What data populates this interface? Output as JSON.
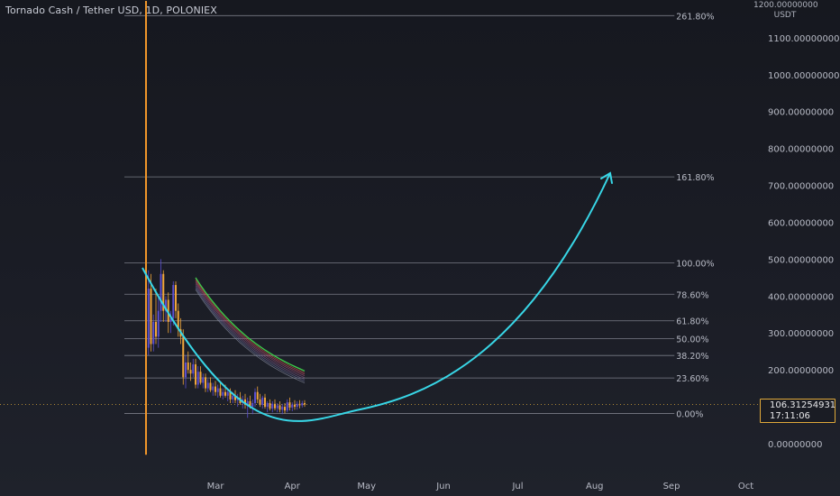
{
  "header": {
    "title": "Tornado Cash / Tether USD, 1D, POLONIEX",
    "axis_top_label": "1200.00000000",
    "axis_unit": "USDT"
  },
  "price_badge": {
    "price": "106.31254931",
    "countdown": "17:11:06",
    "color": "#e0a93a"
  },
  "colors": {
    "curve": "#38d6e6",
    "spike": "#f0962a",
    "fib_line": "#8a8d98",
    "up_candle": "#5b4fd0",
    "down_candle": "#f0a63a",
    "ribbon_top": "#3ecf4c",
    "ribbon_bottom": "#e0506a"
  },
  "chart_data": {
    "type": "candlestick",
    "y_axis": {
      "min": 0,
      "max": 1200,
      "ticks": [
        {
          "v": 0,
          "label": "0.00000000"
        },
        {
          "v": 200,
          "label": "200.00000000"
        },
        {
          "v": 300,
          "label": "300.00000000"
        },
        {
          "v": 400,
          "label": "400.00000000"
        },
        {
          "v": 500,
          "label": "500.00000000"
        },
        {
          "v": 600,
          "label": "600.00000000"
        },
        {
          "v": 700,
          "label": "700.00000000"
        },
        {
          "v": 800,
          "label": "800.00000000"
        },
        {
          "v": 900,
          "label": "900.00000000"
        },
        {
          "v": 1000,
          "label": "1000.00000000"
        },
        {
          "v": 1100,
          "label": "1100.00000000"
        }
      ]
    },
    "x_axis": {
      "ticks": [
        {
          "d": 28,
          "label": "Mar"
        },
        {
          "d": 59,
          "label": "Apr"
        },
        {
          "d": 89,
          "label": "May"
        },
        {
          "d": 120,
          "label": "Jun"
        },
        {
          "d": 150,
          "label": "Jul"
        },
        {
          "d": 181,
          "label": "Aug"
        },
        {
          "d": 212,
          "label": "Sep"
        },
        {
          "d": 242,
          "label": "Oct"
        }
      ]
    },
    "fibonacci": [
      {
        "level": "261.80%",
        "price": 1160
      },
      {
        "level": "161.80%",
        "price": 723
      },
      {
        "level": "100.00%",
        "price": 490
      },
      {
        "level": "78.60%",
        "price": 405
      },
      {
        "level": "61.80%",
        "price": 333
      },
      {
        "level": "50.00%",
        "price": 285
      },
      {
        "level": "38.20%",
        "price": 239
      },
      {
        "level": "23.60%",
        "price": 178
      },
      {
        "level": "0.00%",
        "price": 82
      }
    ],
    "fib_start_day": 0,
    "fib_end_day": 211,
    "spike": {
      "day": 0,
      "high": 1200,
      "low": -30
    },
    "current_price": 106.31254931,
    "candles": [
      {
        "d": 0,
        "o": 330,
        "h": 1200,
        "l": -30,
        "c": 260
      },
      {
        "d": 1,
        "o": 260,
        "h": 470,
        "l": 240,
        "c": 420
      },
      {
        "d": 2,
        "o": 420,
        "h": 460,
        "l": 250,
        "c": 270
      },
      {
        "d": 3,
        "o": 270,
        "h": 350,
        "l": 250,
        "c": 330
      },
      {
        "d": 4,
        "o": 330,
        "h": 420,
        "l": 270,
        "c": 290
      },
      {
        "d": 5,
        "o": 290,
        "h": 400,
        "l": 260,
        "c": 360
      },
      {
        "d": 6,
        "o": 360,
        "h": 500,
        "l": 330,
        "c": 460
      },
      {
        "d": 7,
        "o": 460,
        "h": 470,
        "l": 330,
        "c": 360
      },
      {
        "d": 8,
        "o": 360,
        "h": 400,
        "l": 330,
        "c": 390
      },
      {
        "d": 9,
        "o": 390,
        "h": 410,
        "l": 300,
        "c": 330
      },
      {
        "d": 10,
        "o": 330,
        "h": 360,
        "l": 300,
        "c": 340
      },
      {
        "d": 11,
        "o": 340,
        "h": 440,
        "l": 320,
        "c": 430
      },
      {
        "d": 12,
        "o": 430,
        "h": 440,
        "l": 340,
        "c": 360
      },
      {
        "d": 13,
        "o": 360,
        "h": 380,
        "l": 290,
        "c": 310
      },
      {
        "d": 14,
        "o": 310,
        "h": 340,
        "l": 270,
        "c": 290
      },
      {
        "d": 15,
        "o": 290,
        "h": 310,
        "l": 160,
        "c": 180
      },
      {
        "d": 16,
        "o": 180,
        "h": 240,
        "l": 150,
        "c": 220
      },
      {
        "d": 17,
        "o": 220,
        "h": 250,
        "l": 190,
        "c": 200
      },
      {
        "d": 18,
        "o": 200,
        "h": 220,
        "l": 170,
        "c": 190
      },
      {
        "d": 19,
        "o": 190,
        "h": 230,
        "l": 180,
        "c": 215
      },
      {
        "d": 20,
        "o": 215,
        "h": 230,
        "l": 150,
        "c": 160
      },
      {
        "d": 21,
        "o": 160,
        "h": 210,
        "l": 150,
        "c": 195
      },
      {
        "d": 22,
        "o": 195,
        "h": 210,
        "l": 160,
        "c": 165
      },
      {
        "d": 23,
        "o": 165,
        "h": 190,
        "l": 150,
        "c": 180
      },
      {
        "d": 24,
        "o": 180,
        "h": 190,
        "l": 140,
        "c": 150
      },
      {
        "d": 25,
        "o": 150,
        "h": 175,
        "l": 140,
        "c": 165
      },
      {
        "d": 26,
        "o": 165,
        "h": 180,
        "l": 140,
        "c": 145
      },
      {
        "d": 27,
        "o": 145,
        "h": 165,
        "l": 130,
        "c": 155
      },
      {
        "d": 28,
        "o": 155,
        "h": 170,
        "l": 130,
        "c": 140
      },
      {
        "d": 29,
        "o": 140,
        "h": 160,
        "l": 125,
        "c": 150
      },
      {
        "d": 30,
        "o": 150,
        "h": 165,
        "l": 125,
        "c": 130
      },
      {
        "d": 31,
        "o": 130,
        "h": 150,
        "l": 120,
        "c": 140
      },
      {
        "d": 32,
        "o": 140,
        "h": 160,
        "l": 125,
        "c": 130
      },
      {
        "d": 33,
        "o": 130,
        "h": 150,
        "l": 115,
        "c": 140
      },
      {
        "d": 34,
        "o": 140,
        "h": 150,
        "l": 110,
        "c": 120
      },
      {
        "d": 35,
        "o": 120,
        "h": 140,
        "l": 110,
        "c": 130
      },
      {
        "d": 36,
        "o": 130,
        "h": 145,
        "l": 110,
        "c": 118
      },
      {
        "d": 37,
        "o": 118,
        "h": 135,
        "l": 100,
        "c": 125
      },
      {
        "d": 38,
        "o": 125,
        "h": 140,
        "l": 105,
        "c": 110
      },
      {
        "d": 39,
        "o": 110,
        "h": 130,
        "l": 95,
        "c": 120
      },
      {
        "d": 40,
        "o": 120,
        "h": 135,
        "l": 95,
        "c": 105
      },
      {
        "d": 41,
        "o": 105,
        "h": 125,
        "l": 70,
        "c": 115
      },
      {
        "d": 42,
        "o": 115,
        "h": 130,
        "l": 95,
        "c": 100
      },
      {
        "d": 43,
        "o": 100,
        "h": 120,
        "l": 80,
        "c": 110
      },
      {
        "d": 44,
        "o": 110,
        "h": 150,
        "l": 100,
        "c": 140
      },
      {
        "d": 45,
        "o": 140,
        "h": 155,
        "l": 110,
        "c": 120
      },
      {
        "d": 46,
        "o": 120,
        "h": 135,
        "l": 100,
        "c": 105
      },
      {
        "d": 47,
        "o": 105,
        "h": 130,
        "l": 95,
        "c": 125
      },
      {
        "d": 48,
        "o": 125,
        "h": 135,
        "l": 95,
        "c": 100
      },
      {
        "d": 49,
        "o": 100,
        "h": 115,
        "l": 85,
        "c": 110
      },
      {
        "d": 50,
        "o": 110,
        "h": 120,
        "l": 90,
        "c": 95
      },
      {
        "d": 51,
        "o": 95,
        "h": 115,
        "l": 85,
        "c": 108
      },
      {
        "d": 52,
        "o": 108,
        "h": 120,
        "l": 90,
        "c": 96
      },
      {
        "d": 53,
        "o": 96,
        "h": 110,
        "l": 85,
        "c": 104
      },
      {
        "d": 54,
        "o": 104,
        "h": 115,
        "l": 85,
        "c": 92
      },
      {
        "d": 55,
        "o": 92,
        "h": 108,
        "l": 80,
        "c": 100
      },
      {
        "d": 56,
        "o": 100,
        "h": 110,
        "l": 82,
        "c": 90
      },
      {
        "d": 57,
        "o": 90,
        "h": 120,
        "l": 85,
        "c": 112
      },
      {
        "d": 58,
        "o": 112,
        "h": 125,
        "l": 90,
        "c": 98
      },
      {
        "d": 59,
        "o": 98,
        "h": 112,
        "l": 88,
        "c": 106
      },
      {
        "d": 60,
        "o": 106,
        "h": 118,
        "l": 92,
        "c": 100
      },
      {
        "d": 61,
        "o": 100,
        "h": 115,
        "l": 92,
        "c": 108
      },
      {
        "d": 62,
        "o": 108,
        "h": 118,
        "l": 96,
        "c": 104
      },
      {
        "d": 63,
        "o": 104,
        "h": 116,
        "l": 98,
        "c": 110
      },
      {
        "d": 64,
        "o": 110,
        "h": 118,
        "l": 100,
        "c": 106
      }
    ],
    "moving_average_ribbon": {
      "series": [
        {
          "offset": 0,
          "color": "#3ecf4c"
        },
        {
          "offset": -8,
          "color": "#d75a4a"
        },
        {
          "offset": -15,
          "color": "#c25067"
        },
        {
          "offset": -22,
          "color": "#a55478"
        },
        {
          "offset": -30,
          "color": "#8e5888"
        },
        {
          "offset": -38,
          "color": "#7a6596"
        },
        {
          "offset": -46,
          "color": "#6d739f"
        },
        {
          "offset": -54,
          "color": "#8f93a8"
        }
      ]
    }
  }
}
